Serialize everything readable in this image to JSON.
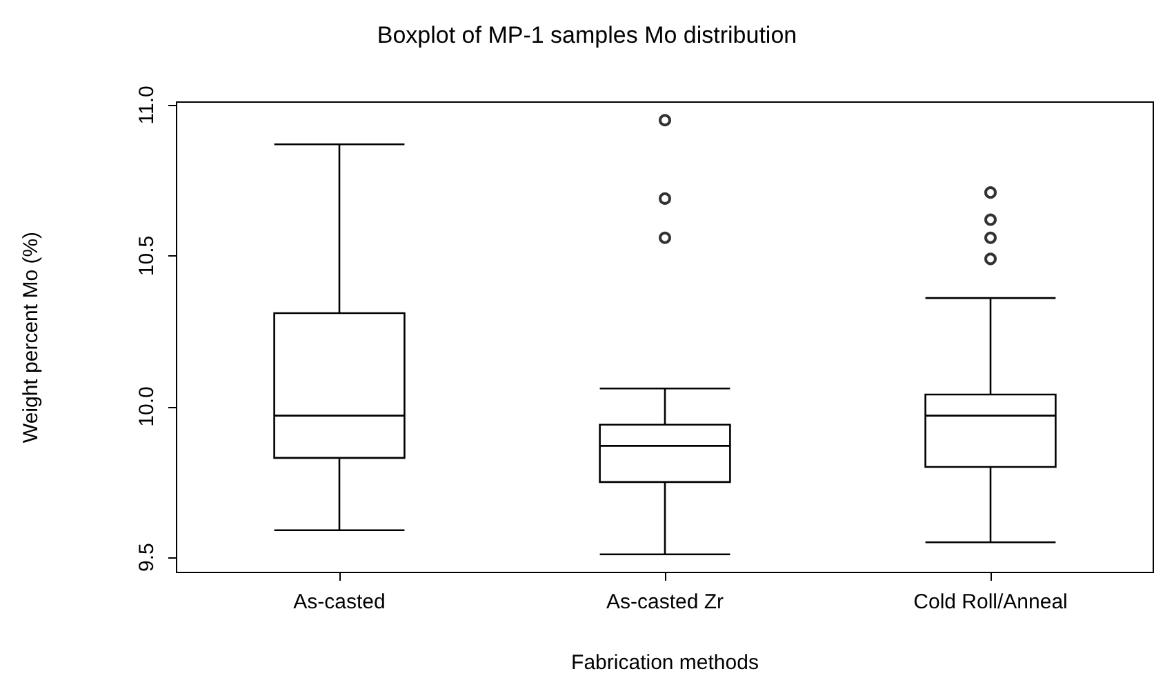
{
  "chart_data": {
    "type": "box",
    "title": "Boxplot of MP-1 samples Mo distribution",
    "xlabel": "Fabrication methods",
    "ylabel": "Weight percent Mo (%)",
    "categories": [
      "As-casted",
      "As-casted Zr",
      "Cold Roll/Anneal"
    ],
    "boxes": [
      {
        "low": 9.59,
        "q1": 9.83,
        "median": 9.97,
        "q3": 10.31,
        "high": 10.87
      },
      {
        "low": 9.51,
        "q1": 9.75,
        "median": 9.87,
        "q3": 9.94,
        "high": 10.06,
        "outliers": [
          10.95,
          10.69,
          10.56
        ]
      },
      {
        "low": 9.55,
        "q1": 9.8,
        "median": 9.97,
        "q3": 10.04,
        "high": 10.36,
        "outliers": [
          10.71,
          10.62,
          10.56,
          10.49
        ]
      }
    ],
    "ylim": [
      9.45,
      11.01
    ],
    "yticks": [
      {
        "value": 9.5,
        "label": "9.5"
      },
      {
        "value": 10,
        "label": "10.0"
      },
      {
        "value": 10.5,
        "label": "10.5"
      },
      {
        "value": 11,
        "label": "11.0"
      }
    ],
    "grid": false
  }
}
